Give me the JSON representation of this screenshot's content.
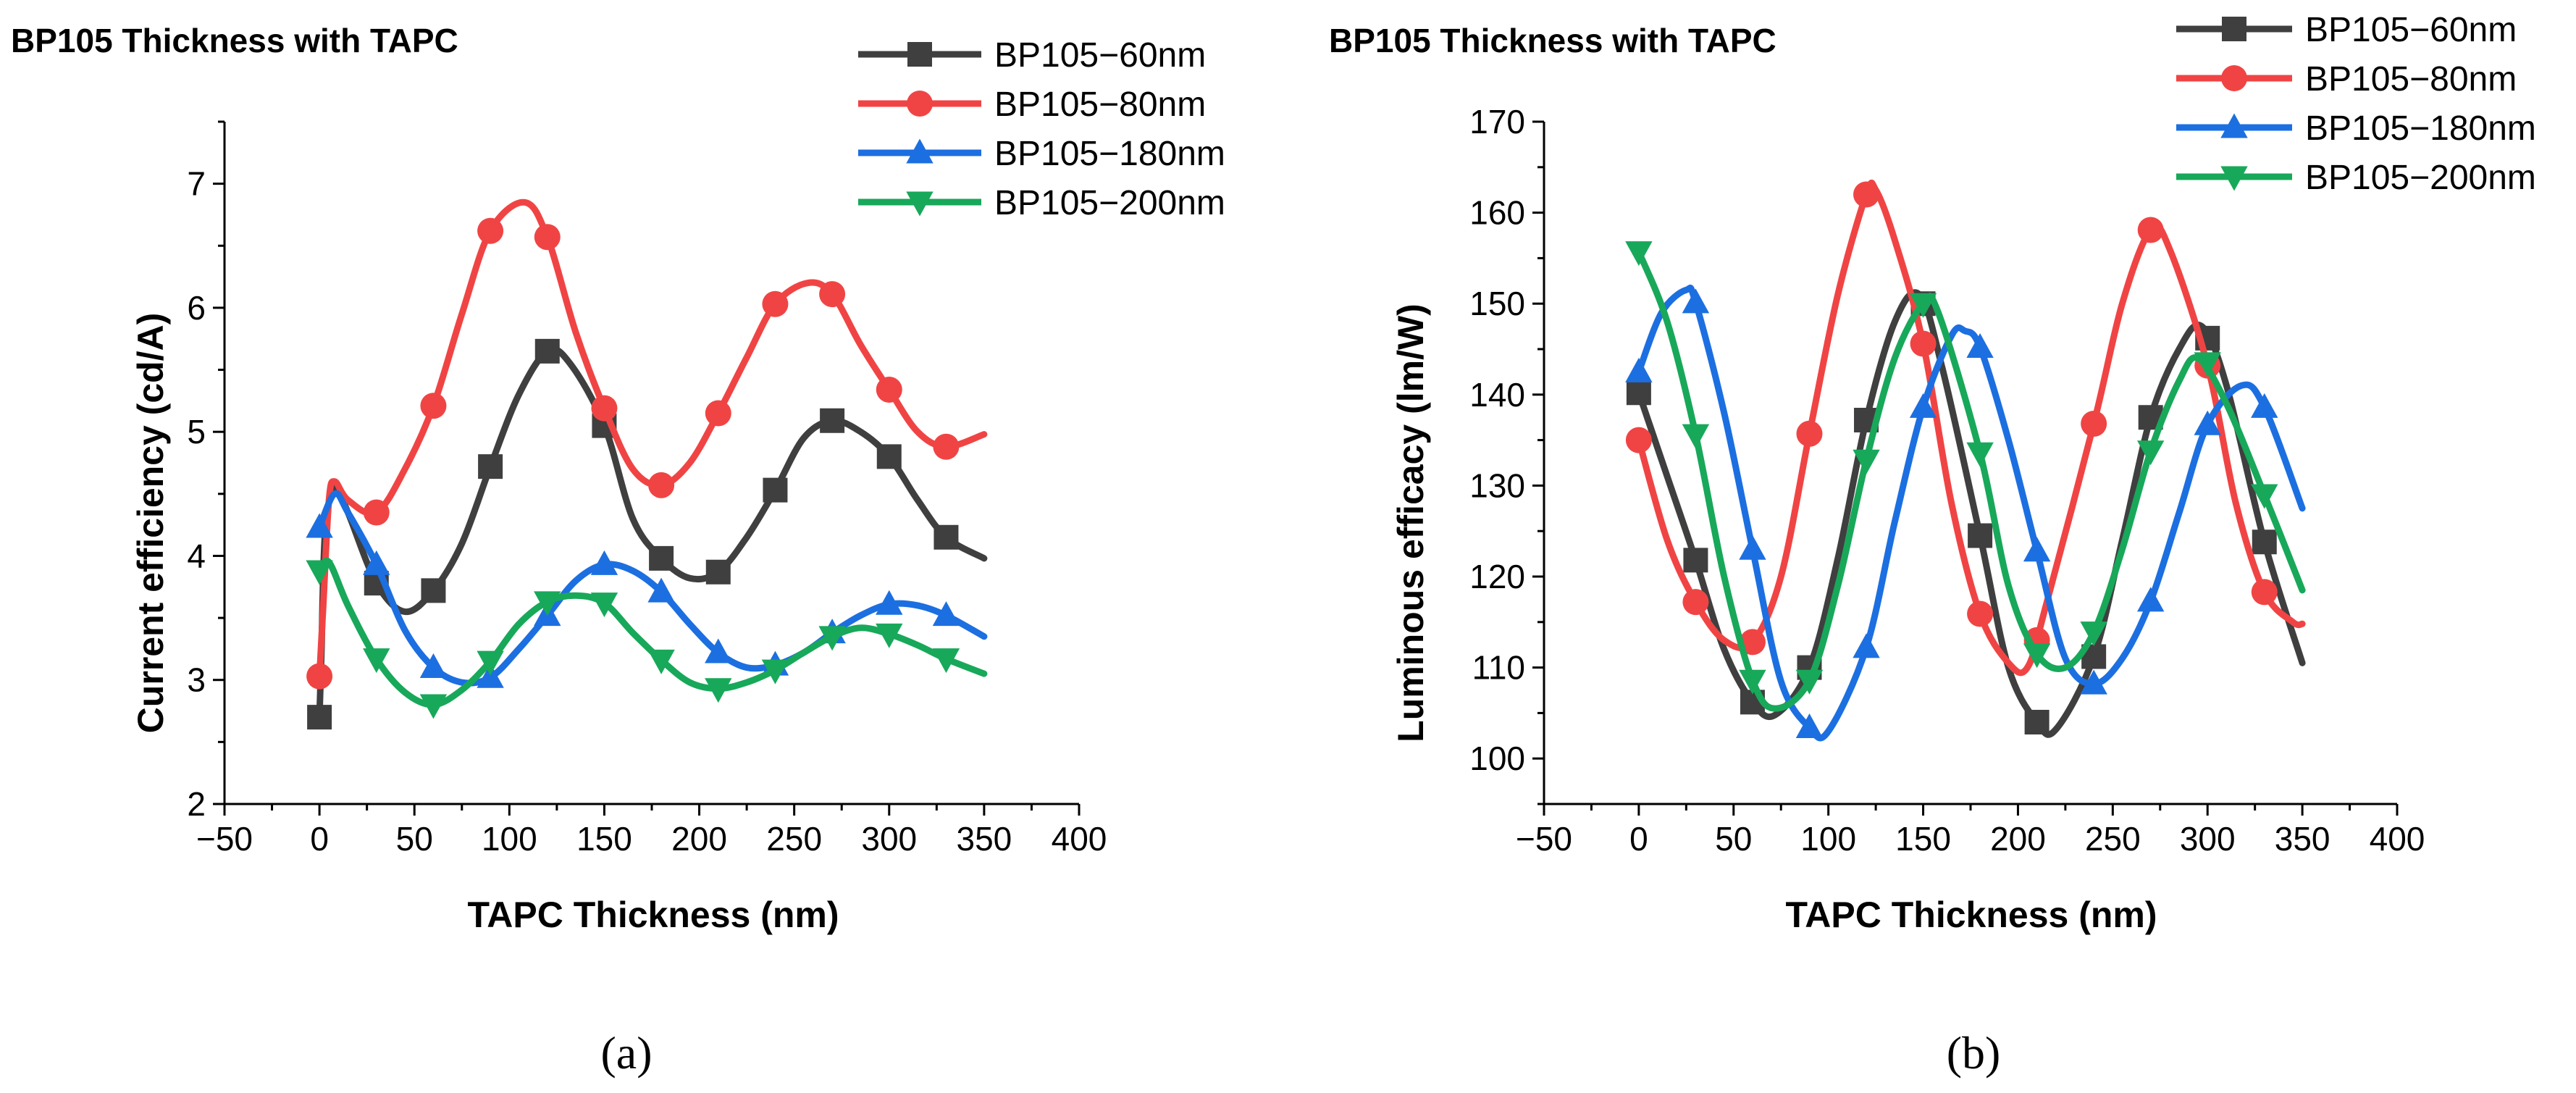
{
  "figure": {
    "panels": [
      {
        "label": "(a)"
      },
      {
        "label": "(b)"
      }
    ]
  },
  "series_colors": {
    "BP105-60nm": "#3f3f3f",
    "BP105-80nm": "#f04444",
    "BP105-180nm": "#1c6fe0",
    "BP105-200nm": "#18a85a"
  },
  "series_markers": {
    "BP105-60nm": "square",
    "BP105-80nm": "circle",
    "BP105-180nm": "triangle-up",
    "BP105-200nm": "triangle-down"
  },
  "chart_data": [
    {
      "type": "line",
      "title": "BP105 Thickness with TAPC",
      "xlabel": "TAPC Thickness (nm)",
      "ylabel": "Current efficiency (cd/A)",
      "xlim": [
        -50,
        400
      ],
      "ylim": [
        2,
        7.5
      ],
      "xticks": [
        -50,
        0,
        50,
        100,
        150,
        200,
        250,
        300,
        350,
        400
      ],
      "xtick_labels": [
        "−50",
        "0",
        "50",
        "100",
        "150",
        "200",
        "250",
        "300",
        "350",
        "400"
      ],
      "yticks": [
        2,
        3,
        4,
        5,
        6,
        7
      ],
      "ytick_labels": [
        "2",
        "3",
        "4",
        "5",
        "6",
        "7"
      ],
      "legend_position": "top-right",
      "x": [
        0,
        30,
        60,
        90,
        120,
        150,
        180,
        210,
        240,
        270,
        300,
        330
      ],
      "series": [
        {
          "name": "BP105−60nm",
          "key": "BP105-60nm",
          "values": [
            2.7,
            3.78,
            3.72,
            4.72,
            5.65,
            5.05,
            3.98,
            3.87,
            4.53,
            5.09,
            4.8,
            4.15
          ],
          "curve": [
            [
              0,
              2.7
            ],
            [
              1,
              3.2
            ],
            [
              3,
              4.2
            ],
            [
              8,
              4.55
            ],
            [
              15,
              4.35
            ],
            [
              30,
              3.78
            ],
            [
              45,
              3.55
            ],
            [
              60,
              3.72
            ],
            [
              75,
              4.1
            ],
            [
              90,
              4.72
            ],
            [
              105,
              5.3
            ],
            [
              120,
              5.65
            ],
            [
              132,
              5.55
            ],
            [
              150,
              5.05
            ],
            [
              165,
              4.3
            ],
            [
              180,
              3.98
            ],
            [
              195,
              3.82
            ],
            [
              210,
              3.87
            ],
            [
              225,
              4.15
            ],
            [
              240,
              4.53
            ],
            [
              255,
              4.95
            ],
            [
              270,
              5.09
            ],
            [
              285,
              5.0
            ],
            [
              300,
              4.8
            ],
            [
              315,
              4.45
            ],
            [
              330,
              4.15
            ],
            [
              350,
              3.98
            ]
          ]
        },
        {
          "name": "BP105−80nm",
          "key": "BP105-80nm",
          "values": [
            3.03,
            4.35,
            5.21,
            6.62,
            6.57,
            5.19,
            4.57,
            5.15,
            6.03,
            6.11,
            5.34,
            4.88
          ],
          "curve": [
            [
              0,
              3.03
            ],
            [
              2,
              3.6
            ],
            [
              5,
              4.45
            ],
            [
              8,
              4.6
            ],
            [
              15,
              4.45
            ],
            [
              30,
              4.35
            ],
            [
              45,
              4.7
            ],
            [
              60,
              5.21
            ],
            [
              75,
              5.95
            ],
            [
              90,
              6.62
            ],
            [
              108,
              6.85
            ],
            [
              120,
              6.57
            ],
            [
              135,
              5.8
            ],
            [
              150,
              5.19
            ],
            [
              165,
              4.7
            ],
            [
              180,
              4.57
            ],
            [
              195,
              4.75
            ],
            [
              210,
              5.15
            ],
            [
              225,
              5.6
            ],
            [
              240,
              6.03
            ],
            [
              257,
              6.2
            ],
            [
              270,
              6.11
            ],
            [
              285,
              5.7
            ],
            [
              300,
              5.34
            ],
            [
              315,
              5.0
            ],
            [
              330,
              4.88
            ],
            [
              350,
              4.98
            ]
          ]
        },
        {
          "name": "BP105−180nm",
          "key": "BP105-180nm",
          "values": [
            4.23,
            3.93,
            3.1,
            3.02,
            3.52,
            3.93,
            3.71,
            3.22,
            3.12,
            3.38,
            3.61,
            3.52
          ],
          "curve": [
            [
              0,
              4.23
            ],
            [
              8,
              4.5
            ],
            [
              15,
              4.35
            ],
            [
              30,
              3.93
            ],
            [
              45,
              3.4
            ],
            [
              60,
              3.1
            ],
            [
              75,
              2.98
            ],
            [
              90,
              3.02
            ],
            [
              105,
              3.25
            ],
            [
              120,
              3.52
            ],
            [
              135,
              3.8
            ],
            [
              150,
              3.93
            ],
            [
              165,
              3.88
            ],
            [
              180,
              3.71
            ],
            [
              195,
              3.45
            ],
            [
              210,
              3.22
            ],
            [
              225,
              3.1
            ],
            [
              240,
              3.12
            ],
            [
              255,
              3.22
            ],
            [
              270,
              3.38
            ],
            [
              285,
              3.52
            ],
            [
              300,
              3.61
            ],
            [
              315,
              3.6
            ],
            [
              330,
              3.52
            ],
            [
              350,
              3.35
            ]
          ]
        },
        {
          "name": "BP105−200nm",
          "key": "BP105-200nm",
          "values": [
            3.88,
            3.17,
            2.8,
            3.15,
            3.63,
            3.62,
            3.16,
            2.93,
            3.08,
            3.35,
            3.37,
            3.17
          ],
          "curve": [
            [
              0,
              3.88
            ],
            [
              5,
              3.95
            ],
            [
              15,
              3.6
            ],
            [
              30,
              3.17
            ],
            [
              45,
              2.9
            ],
            [
              60,
              2.8
            ],
            [
              75,
              2.92
            ],
            [
              90,
              3.15
            ],
            [
              105,
              3.45
            ],
            [
              120,
              3.63
            ],
            [
              135,
              3.68
            ],
            [
              150,
              3.62
            ],
            [
              165,
              3.38
            ],
            [
              180,
              3.16
            ],
            [
              195,
              2.98
            ],
            [
              210,
              2.93
            ],
            [
              225,
              2.98
            ],
            [
              240,
              3.08
            ],
            [
              255,
              3.22
            ],
            [
              270,
              3.35
            ],
            [
              285,
              3.42
            ],
            [
              300,
              3.37
            ],
            [
              315,
              3.28
            ],
            [
              330,
              3.17
            ],
            [
              350,
              3.05
            ]
          ]
        }
      ]
    },
    {
      "type": "line",
      "title": "BP105 Thickness with TAPC",
      "xlabel": "TAPC Thickness (nm)",
      "ylabel": "Luminous efficacy (lm/W)",
      "xlim": [
        -50,
        400
      ],
      "ylim": [
        95,
        170
      ],
      "xticks": [
        -50,
        0,
        50,
        100,
        150,
        200,
        250,
        300,
        350,
        400
      ],
      "xtick_labels": [
        "−50",
        "0",
        "50",
        "100",
        "150",
        "200",
        "250",
        "300",
        "350",
        "400"
      ],
      "yticks": [
        100,
        110,
        120,
        130,
        140,
        150,
        160,
        170
      ],
      "ytick_labels": [
        "100",
        "110",
        "120",
        "130",
        "140",
        "150",
        "160",
        "170"
      ],
      "legend_position": "top-right",
      "x": [
        0,
        30,
        60,
        90,
        120,
        150,
        180,
        210,
        240,
        270,
        300,
        330
      ],
      "series": [
        {
          "name": "BP105−60nm",
          "key": "BP105-60nm",
          "values": [
            140.2,
            121.8,
            106.2,
            110.0,
            137.2,
            150.0,
            124.5,
            104.0,
            111.2,
            137.5,
            146.2,
            123.8
          ],
          "curve": [
            [
              0,
              140.2
            ],
            [
              15,
              131
            ],
            [
              30,
              121.8
            ],
            [
              45,
              112
            ],
            [
              60,
              106.2
            ],
            [
              72,
              104.8
            ],
            [
              90,
              110.0
            ],
            [
              105,
              122
            ],
            [
              120,
              137.2
            ],
            [
              135,
              148
            ],
            [
              148,
              151
            ],
            [
              160,
              143
            ],
            [
              180,
              124.5
            ],
            [
              195,
              110
            ],
            [
              210,
              104.0
            ],
            [
              220,
              103.2
            ],
            [
              240,
              111.2
            ],
            [
              255,
              124
            ],
            [
              270,
              137.5
            ],
            [
              285,
              145
            ],
            [
              297,
              147.5
            ],
            [
              310,
              141
            ],
            [
              330,
              123.8
            ],
            [
              350,
              110.5
            ]
          ]
        },
        {
          "name": "BP105−80nm",
          "key": "BP105-80nm",
          "values": [
            135.0,
            117.2,
            112.8,
            135.7,
            162.0,
            145.6,
            115.9,
            113.0,
            136.8,
            158.1,
            143.2,
            118.3
          ],
          "curve": [
            [
              0,
              135.0
            ],
            [
              15,
              124
            ],
            [
              30,
              117.2
            ],
            [
              45,
              113
            ],
            [
              60,
              112.8
            ],
            [
              75,
              120
            ],
            [
              90,
              135.7
            ],
            [
              105,
              151
            ],
            [
              120,
              162.0
            ],
            [
              125,
              162.5
            ],
            [
              135,
              157
            ],
            [
              150,
              145.6
            ],
            [
              165,
              128
            ],
            [
              180,
              115.9
            ],
            [
              195,
              110.5
            ],
            [
              205,
              110
            ],
            [
              215,
              117
            ],
            [
              240,
              136.8
            ],
            [
              255,
              150
            ],
            [
              270,
              158.1
            ],
            [
              280,
              156
            ],
            [
              300,
              143.2
            ],
            [
              315,
              128
            ],
            [
              330,
              118.3
            ],
            [
              345,
              115
            ],
            [
              350,
              114.8
            ]
          ]
        },
        {
          "name": "BP105−180nm",
          "key": "BP105-180nm",
          "values": [
            142.5,
            150.1,
            123.0,
            103.4,
            112.2,
            138.6,
            145.2,
            122.8,
            108.2,
            117.3,
            136.7,
            138.6
          ],
          "curve": [
            [
              0,
              142.5
            ],
            [
              12,
              149
            ],
            [
              25,
              151.5
            ],
            [
              30,
              150.1
            ],
            [
              45,
              138
            ],
            [
              60,
              123.0
            ],
            [
              75,
              108.5
            ],
            [
              90,
              103.4
            ],
            [
              100,
              103
            ],
            [
              120,
              112.2
            ],
            [
              135,
              126
            ],
            [
              150,
              138.6
            ],
            [
              165,
              146.5
            ],
            [
              172,
              147
            ],
            [
              180,
              145.2
            ],
            [
              195,
              135
            ],
            [
              210,
              122.8
            ],
            [
              225,
              111
            ],
            [
              240,
              108.2
            ],
            [
              255,
              111
            ],
            [
              270,
              117.3
            ],
            [
              285,
              127
            ],
            [
              300,
              136.7
            ],
            [
              318,
              141
            ],
            [
              330,
              138.6
            ],
            [
              350,
              127.5
            ]
          ]
        },
        {
          "name": "BP105−200nm",
          "key": "BP105-200nm",
          "values": [
            155.7,
            135.6,
            108.6,
            108.6,
            132.8,
            150.0,
            133.6,
            111.5,
            113.9,
            133.8,
            143.5,
            129.0
          ],
          "curve": [
            [
              0,
              155.7
            ],
            [
              15,
              148
            ],
            [
              30,
              135.6
            ],
            [
              45,
              120
            ],
            [
              60,
              108.6
            ],
            [
              72,
              105.5
            ],
            [
              90,
              108.6
            ],
            [
              105,
              119
            ],
            [
              120,
              132.8
            ],
            [
              135,
              144
            ],
            [
              150,
              150.0
            ],
            [
              158,
              149
            ],
            [
              180,
              133.6
            ],
            [
              195,
              119
            ],
            [
              210,
              111.5
            ],
            [
              225,
              110
            ],
            [
              240,
              113.9
            ],
            [
              255,
              123
            ],
            [
              270,
              133.8
            ],
            [
              285,
              141.5
            ],
            [
              295,
              144
            ],
            [
              310,
              139
            ],
            [
              330,
              129.0
            ],
            [
              350,
              118.5
            ]
          ]
        }
      ]
    }
  ]
}
